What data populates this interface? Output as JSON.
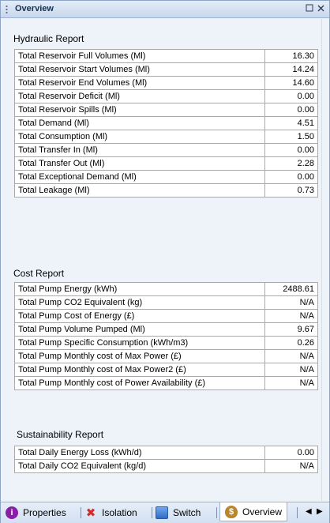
{
  "panel": {
    "title": "Overview"
  },
  "hydraulic": {
    "title": "Hydraulic Report",
    "rows": [
      {
        "label": "Total Reservoir Full Volumes (Ml)",
        "value": "16.30"
      },
      {
        "label": "Total Reservoir Start Volumes (Ml)",
        "value": "14.24"
      },
      {
        "label": "Total Reservoir End Volumes (Ml)",
        "value": "14.60"
      },
      {
        "label": "Total Reservoir Deficit (Ml)",
        "value": "0.00"
      },
      {
        "label": "Total Reservoir Spills (Ml)",
        "value": "0.00"
      },
      {
        "label": "Total Demand (Ml)",
        "value": "4.51"
      },
      {
        "label": "Total Consumption (Ml)",
        "value": "1.50"
      },
      {
        "label": "Total Transfer In (Ml)",
        "value": "0.00"
      },
      {
        "label": "Total Transfer Out (Ml)",
        "value": "2.28"
      },
      {
        "label": "Total Exceptional Demand (Ml)",
        "value": "0.00"
      },
      {
        "label": "Total Leakage (Ml)",
        "value": "0.73"
      }
    ]
  },
  "cost": {
    "title": "Cost Report",
    "rows": [
      {
        "label": "Total Pump Energy (kWh)",
        "value": "2488.61"
      },
      {
        "label": "Total Pump CO2 Equivalent (kg)",
        "value": "N/A"
      },
      {
        "label": "Total Pump Cost of Energy (£)",
        "value": "N/A"
      },
      {
        "label": "Total Pump Volume Pumped (Ml)",
        "value": "9.67"
      },
      {
        "label": "Total Pump Specific Consumption (kWh/m3)",
        "value": "0.26"
      },
      {
        "label": "Total Pump Monthly cost of Max Power (£)",
        "value": "N/A"
      },
      {
        "label": "Total Pump Monthly cost of Max Power2 (£)",
        "value": "N/A"
      },
      {
        "label": "Total Pump Monthly cost of Power Availability (£)",
        "value": "N/A"
      }
    ]
  },
  "sustainability": {
    "title": "Sustainability Report",
    "rows": [
      {
        "label": "Total Daily Energy Loss (kWh/d)",
        "value": "0.00"
      },
      {
        "label": "Total Daily CO2 Equivalent (kg/d)",
        "value": "N/A"
      }
    ]
  },
  "tabs": [
    {
      "label": "Properties",
      "icon": "info-icon",
      "color": "#8b1ea8"
    },
    {
      "label": "Isolation",
      "icon": "isolation-icon",
      "color": "#d42b2b"
    },
    {
      "label": "Switch",
      "icon": "switch-icon",
      "color": "#3a7bd5"
    },
    {
      "label": "Overview",
      "icon": "money-bag-icon",
      "color": "#b8862e"
    }
  ],
  "active_tab": "Overview"
}
